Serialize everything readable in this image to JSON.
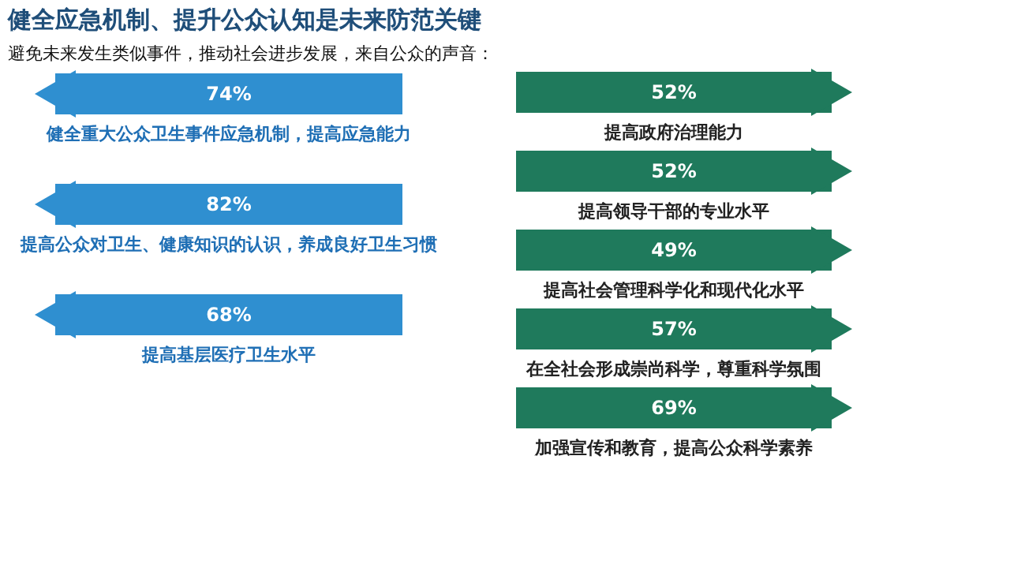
{
  "chart_data": [
    {
      "type": "other",
      "title": "健全应急机制、提升公众认知是未来防范关键",
      "subtitle": "避免未来发生类似事件，推动社会进步发展，来自公众的声音：",
      "categories": [
        "健全重大公众卫生事件应急机制，提高应急能力",
        "提高公众对卫生、健康知识的认识，养成良好卫生习惯",
        "提高基层医疗卫生水平"
      ],
      "values": [
        74,
        82,
        68
      ],
      "value_labels": [
        "74%",
        "82%",
        "68%"
      ],
      "color": "#2f8fd0"
    },
    {
      "type": "other",
      "categories": [
        "提高政府治理能力",
        "提高领导干部的专业水平",
        "提高社会管理科学化和现代化水平",
        "在全社会形成崇尚科学，尊重科学氛围",
        "加强宣传和教育，提高公众科学素养"
      ],
      "values": [
        52,
        52,
        49,
        57,
        69
      ],
      "value_labels": [
        "52%",
        "52%",
        "49%",
        "57%",
        "69%"
      ],
      "color": "#1f7a5c"
    }
  ]
}
